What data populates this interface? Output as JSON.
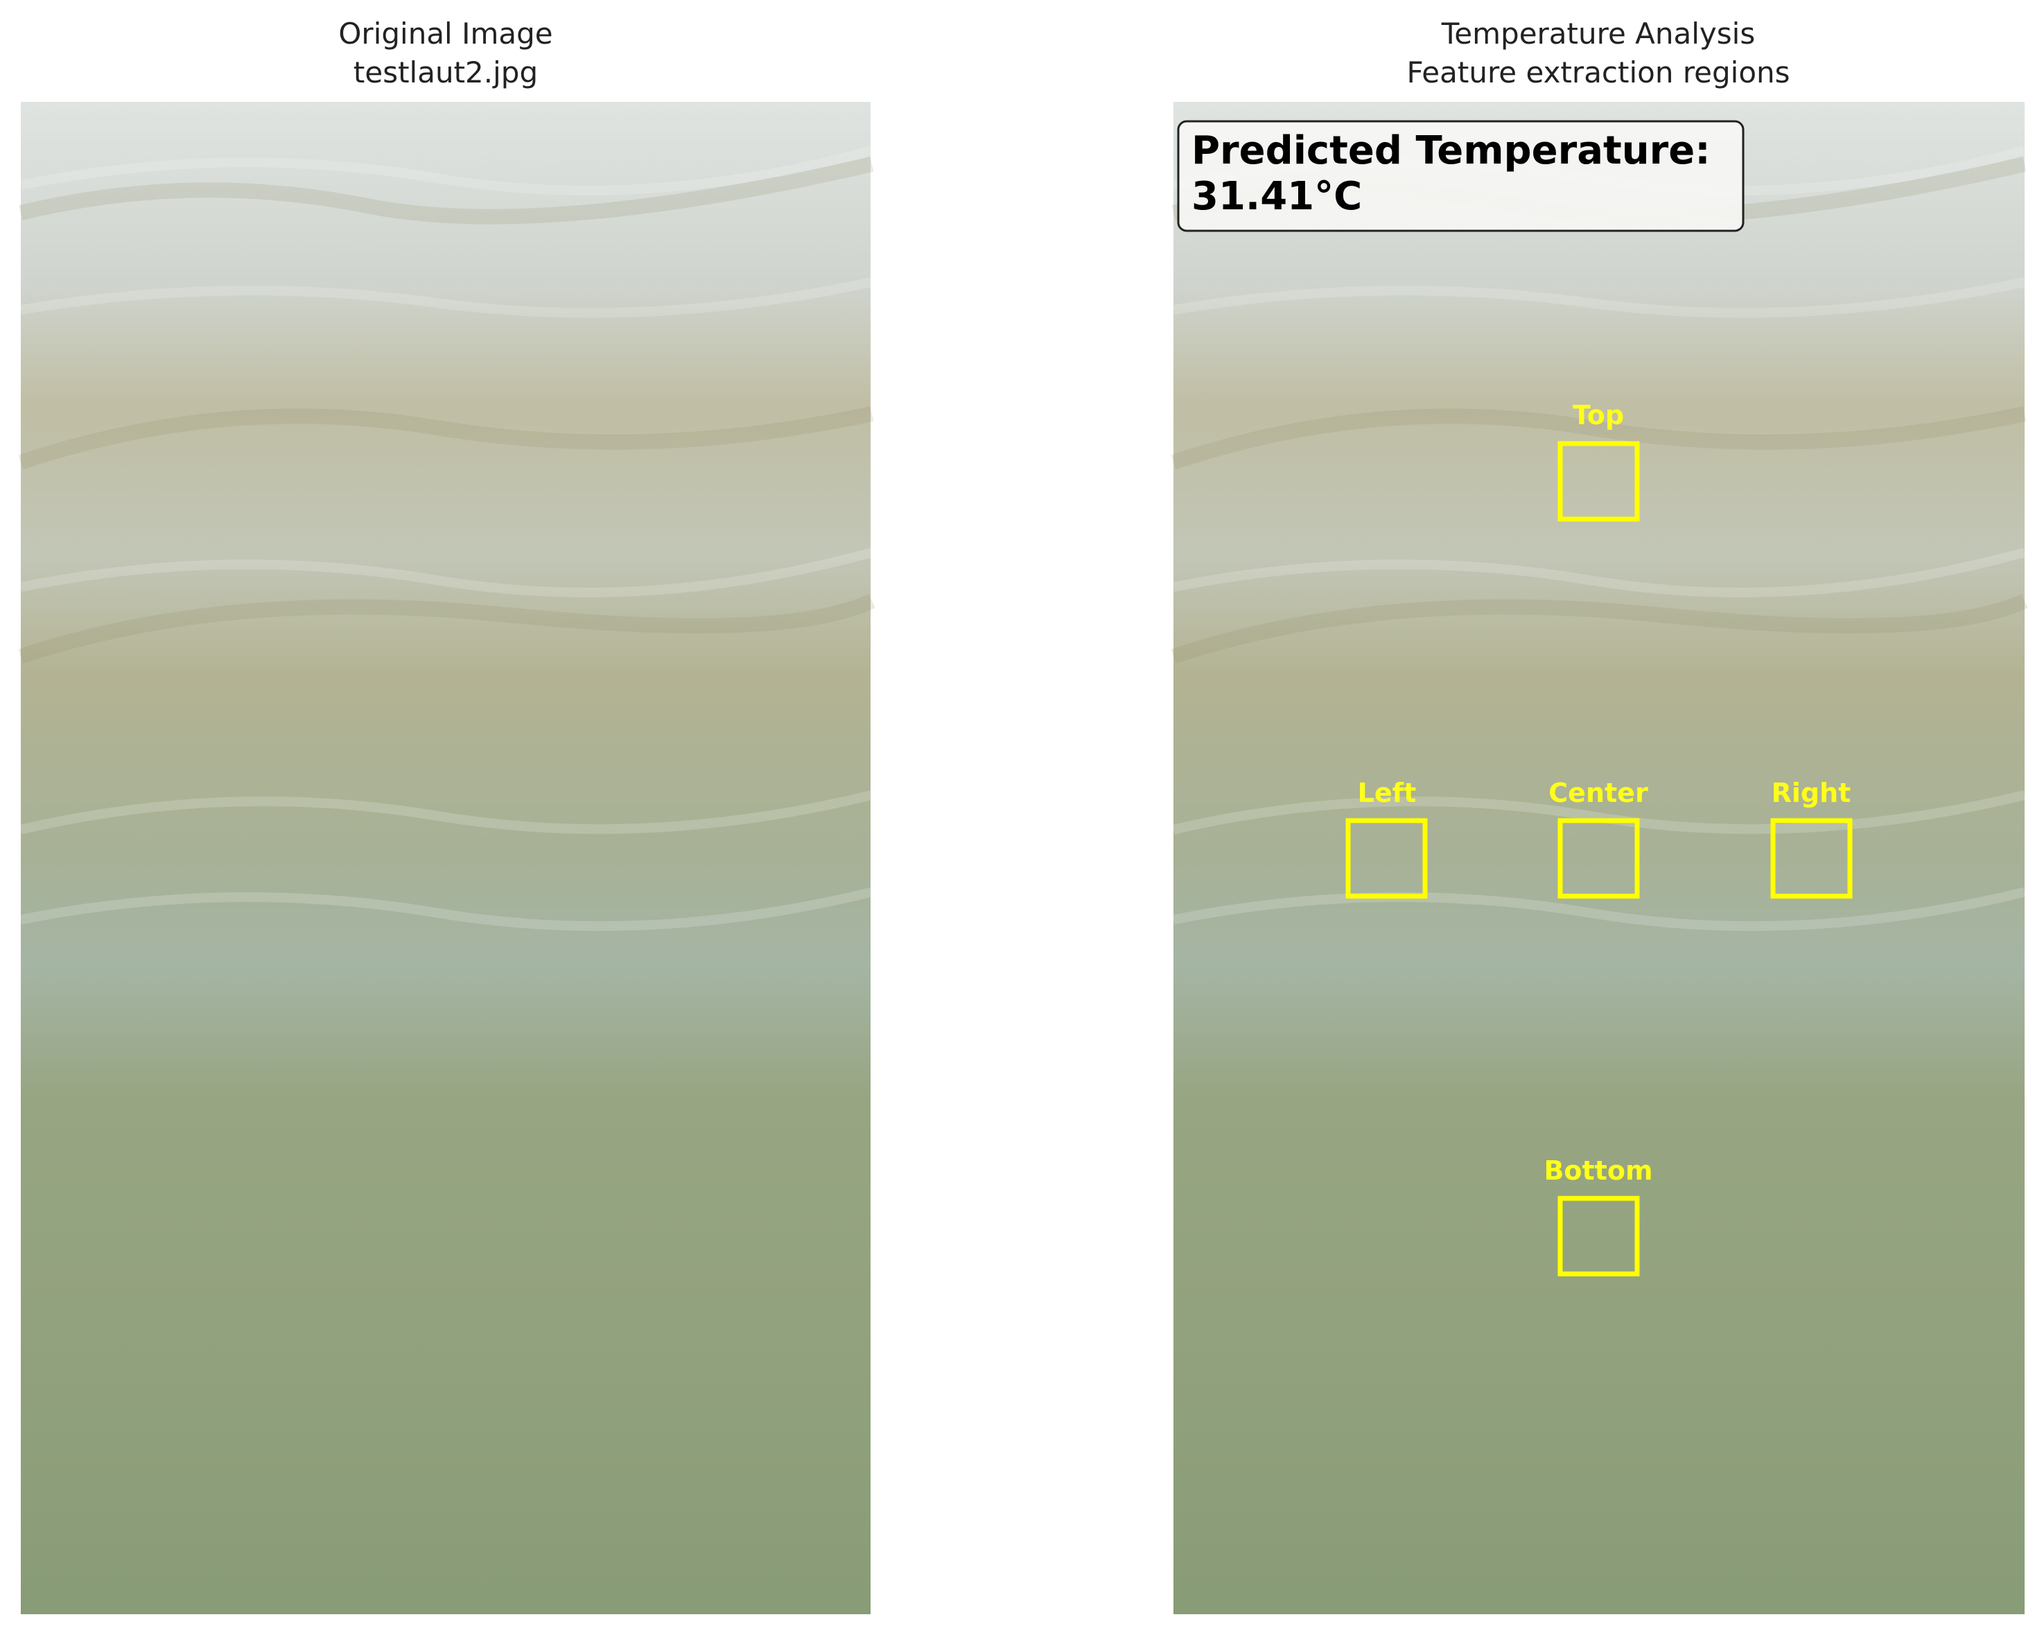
{
  "panels": [
    {
      "title": [
        "Original Image",
        "testlaut2.jpg"
      ]
    },
    {
      "title": [
        "Temperature Analysis",
        "Feature extraction regions"
      ],
      "prediction": {
        "label": "Predicted Temperature:",
        "value": "31.41°C"
      },
      "regions": [
        "Top",
        "Left",
        "Center",
        "Right",
        "Bottom"
      ]
    }
  ]
}
